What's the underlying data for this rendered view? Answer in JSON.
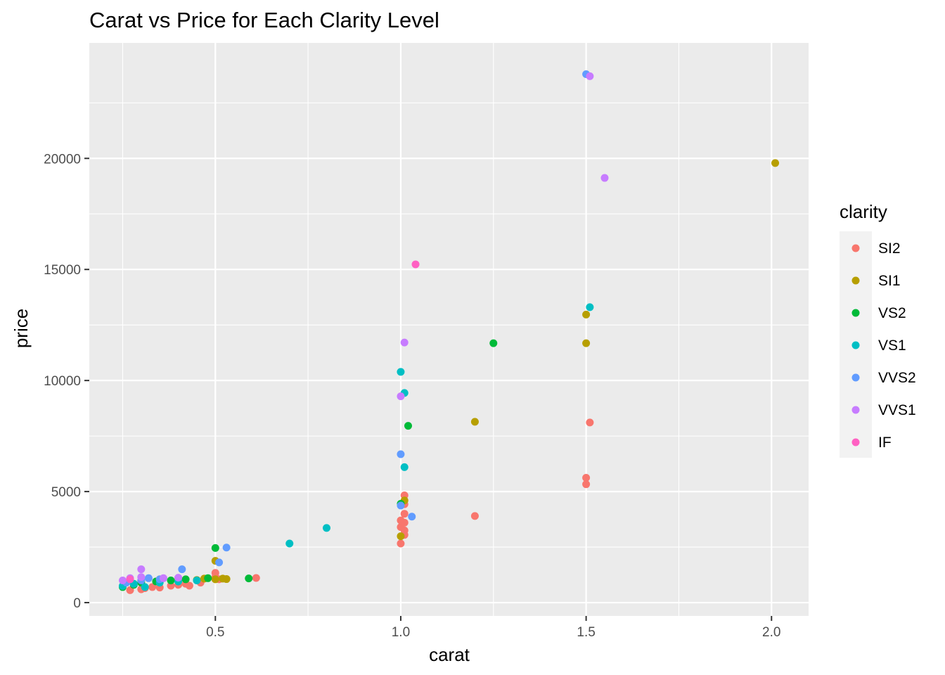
{
  "chart_data": {
    "type": "scatter",
    "title": "Carat vs Price for Each Clarity Level",
    "xlabel": "carat",
    "ylabel": "price",
    "xlim": [
      0.16,
      2.1
    ],
    "ylim": [
      -600,
      25200
    ],
    "x_ticks": [
      0.5,
      1.0,
      1.5,
      2.0
    ],
    "x_tick_labels": [
      "0.5",
      "1.0",
      "1.5",
      "2.0"
    ],
    "y_ticks": [
      0,
      5000,
      10000,
      15000,
      20000
    ],
    "y_tick_labels": [
      "0",
      "5000",
      "10000",
      "15000",
      "20000"
    ],
    "grid": true,
    "legend_title": "clarity",
    "legend_position": "right",
    "series": [
      {
        "name": "SI2",
        "color": "#F8766D",
        "points": [
          [
            0.27,
            560
          ],
          [
            0.3,
            600
          ],
          [
            0.31,
            650
          ],
          [
            0.33,
            700
          ],
          [
            0.35,
            680
          ],
          [
            0.38,
            760
          ],
          [
            0.4,
            800
          ],
          [
            0.42,
            850
          ],
          [
            0.43,
            760
          ],
          [
            0.46,
            900
          ],
          [
            0.5,
            1340
          ],
          [
            0.5,
            1150
          ],
          [
            0.51,
            1050
          ],
          [
            0.61,
            1110
          ],
          [
            1.0,
            2660
          ],
          [
            1.0,
            3400
          ],
          [
            1.0,
            3700
          ],
          [
            1.01,
            3050
          ],
          [
            1.01,
            3250
          ],
          [
            1.01,
            3600
          ],
          [
            1.01,
            4000
          ],
          [
            1.01,
            4430
          ],
          [
            1.01,
            4830
          ],
          [
            1.2,
            3900
          ],
          [
            1.5,
            5330
          ],
          [
            1.5,
            5620
          ],
          [
            1.51,
            8110
          ]
        ]
      },
      {
        "name": "SI1",
        "color": "#B79F00",
        "points": [
          [
            0.3,
            980
          ],
          [
            0.35,
            1050
          ],
          [
            0.4,
            1100
          ],
          [
            0.45,
            1020
          ],
          [
            0.47,
            1080
          ],
          [
            0.5,
            1880
          ],
          [
            0.5,
            1050
          ],
          [
            0.52,
            1080
          ],
          [
            0.53,
            1060
          ],
          [
            1.0,
            2990
          ],
          [
            1.01,
            4600
          ],
          [
            1.2,
            8140
          ],
          [
            1.5,
            11680
          ],
          [
            1.5,
            12970
          ],
          [
            2.01,
            19790
          ]
        ]
      },
      {
        "name": "VS2",
        "color": "#00BA38",
        "points": [
          [
            0.25,
            700
          ],
          [
            0.28,
            800
          ],
          [
            0.3,
            900
          ],
          [
            0.34,
            950
          ],
          [
            0.38,
            1000
          ],
          [
            0.42,
            1050
          ],
          [
            0.48,
            1100
          ],
          [
            0.5,
            2460
          ],
          [
            0.59,
            1090
          ],
          [
            1.0,
            4450
          ],
          [
            1.02,
            7960
          ],
          [
            1.25,
            11680
          ]
        ]
      },
      {
        "name": "VS1",
        "color": "#00BFC4",
        "points": [
          [
            0.25,
            750
          ],
          [
            0.28,
            850
          ],
          [
            0.31,
            700
          ],
          [
            0.35,
            900
          ],
          [
            0.4,
            950
          ],
          [
            0.45,
            1000
          ],
          [
            0.7,
            2660
          ],
          [
            0.8,
            3360
          ],
          [
            1.0,
            10390
          ],
          [
            1.01,
            9440
          ],
          [
            1.01,
            6100
          ],
          [
            1.51,
            13300
          ]
        ]
      },
      {
        "name": "VVS2",
        "color": "#619CFF",
        "points": [
          [
            0.26,
            900
          ],
          [
            0.3,
            1000
          ],
          [
            0.32,
            1100
          ],
          [
            0.35,
            1050
          ],
          [
            0.41,
            1500
          ],
          [
            0.51,
            1810
          ],
          [
            0.53,
            2480
          ],
          [
            1.0,
            4370
          ],
          [
            1.0,
            6680
          ],
          [
            1.03,
            3870
          ],
          [
            1.5,
            23790
          ]
        ]
      },
      {
        "name": "VVS1",
        "color": "#C77CFF",
        "points": [
          [
            0.25,
            1000
          ],
          [
            0.27,
            1100
          ],
          [
            0.3,
            1500
          ],
          [
            0.3,
            1150
          ],
          [
            0.36,
            1100
          ],
          [
            0.4,
            1120
          ],
          [
            1.0,
            9290
          ],
          [
            1.01,
            11710
          ],
          [
            1.51,
            23700
          ],
          [
            1.55,
            19120
          ]
        ]
      },
      {
        "name": "IF",
        "color": "#FF61C3",
        "points": [
          [
            0.27,
            1050
          ],
          [
            1.04,
            15230
          ]
        ]
      }
    ]
  }
}
